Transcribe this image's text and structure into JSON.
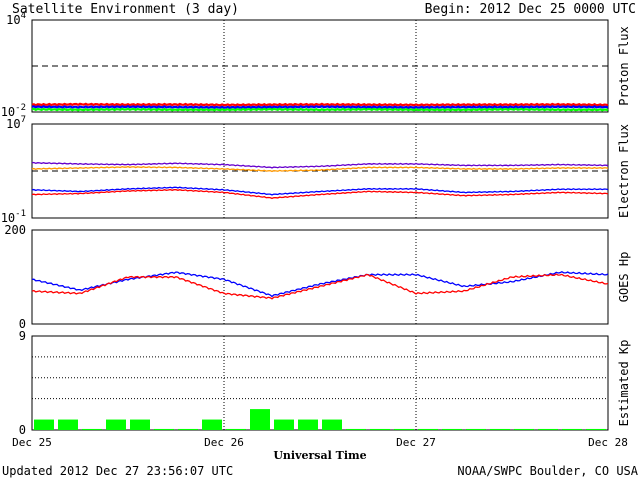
{
  "header": {
    "title": "Satellite Environment (3 day)",
    "begin": "Begin:  2012 Dec 25 0000 UTC"
  },
  "footer": {
    "updated": "Updated 2012 Dec 27 23:56:07 UTC",
    "credit": "NOAA/SWPC Boulder, CO USA"
  },
  "x_axis": {
    "label": "Universal Time",
    "ticks": [
      "Dec 25",
      "Dec 26",
      "Dec 27",
      "Dec 28"
    ],
    "range_days": [
      0,
      3
    ]
  },
  "colors": {
    "red": "#ff0000",
    "blue": "#0000ff",
    "green": "#00ff00",
    "purple": "#6600cc",
    "orange": "#ff9900",
    "black": "#000000"
  },
  "chart_data": [
    {
      "type": "line",
      "ylabel": "Proton Flux",
      "yscale": "log",
      "ylim": [
        0.01,
        10000
      ],
      "ytick_labels": [
        {
          "base": "10",
          "exp": "4"
        },
        {
          "base": "10",
          "exp": "-2"
        }
      ],
      "threshold": 10,
      "x": [
        0,
        0.25,
        0.5,
        0.75,
        1,
        1.25,
        1.5,
        1.75,
        2,
        2.25,
        2.5,
        2.75,
        3
      ],
      "series": [
        {
          "color": "red",
          "values": [
            0.03,
            0.032,
            0.03,
            0.031,
            0.029,
            0.03,
            0.031,
            0.03,
            0.029,
            0.03,
            0.03,
            0.031,
            0.029
          ]
        },
        {
          "color": "blue",
          "values": [
            0.022,
            0.021,
            0.022,
            0.021,
            0.02,
            0.021,
            0.022,
            0.021,
            0.02,
            0.021,
            0.021,
            0.022,
            0.021
          ]
        },
        {
          "color": "green",
          "values": [
            0.015,
            0.014,
            0.015,
            0.014,
            0.014,
            0.015,
            0.014,
            0.015,
            0.014,
            0.014,
            0.015,
            0.014,
            0.014
          ]
        }
      ]
    },
    {
      "type": "line",
      "ylabel": "Electron Flux",
      "yscale": "log",
      "ylim": [
        0.1,
        10000000
      ],
      "ytick_labels": [
        {
          "base": "10",
          "exp": "7"
        },
        {
          "base": "10",
          "exp": "-1"
        }
      ],
      "threshold": 1000,
      "x": [
        0,
        0.25,
        0.5,
        0.75,
        1,
        1.25,
        1.5,
        1.75,
        2,
        2.25,
        2.5,
        2.75,
        3
      ],
      "series": [
        {
          "color": "purple",
          "values": [
            5000,
            4000,
            3500,
            4500,
            3500,
            2000,
            2500,
            4000,
            4000,
            3000,
            3000,
            3500,
            3000
          ]
        },
        {
          "color": "orange",
          "values": [
            1500,
            1800,
            2200,
            2000,
            1500,
            1000,
            1200,
            2000,
            2000,
            1500,
            1500,
            1800,
            1800
          ]
        },
        {
          "color": "blue",
          "values": [
            25,
            18,
            30,
            40,
            25,
            10,
            18,
            30,
            30,
            15,
            18,
            28,
            28
          ]
        },
        {
          "color": "red",
          "values": [
            10,
            12,
            20,
            25,
            15,
            5,
            10,
            18,
            15,
            8,
            10,
            15,
            12
          ]
        }
      ]
    },
    {
      "type": "line",
      "ylabel": "GOES Hp",
      "ylim": [
        0,
        200
      ],
      "ytick_labels": [
        "200",
        "0"
      ],
      "x": [
        0,
        0.25,
        0.5,
        0.75,
        1,
        1.25,
        1.5,
        1.75,
        2,
        2.25,
        2.5,
        2.75,
        3
      ],
      "series": [
        {
          "color": "blue",
          "values": [
            95,
            72,
            95,
            110,
            95,
            60,
            85,
            105,
            105,
            80,
            90,
            110,
            105
          ]
        },
        {
          "color": "red",
          "values": [
            70,
            65,
            100,
            100,
            65,
            55,
            80,
            105,
            65,
            70,
            100,
            105,
            85
          ]
        }
      ]
    },
    {
      "type": "bar",
      "ylabel": "Estimated Kp",
      "ylim": [
        0,
        9
      ],
      "ytick_labels": [
        "9",
        "0"
      ],
      "gridlines": [
        3,
        5,
        7
      ],
      "x": [
        0.0625,
        0.1875,
        0.3125,
        0.4375,
        0.5625,
        0.6875,
        0.8125,
        0.9375,
        1.0625,
        1.1875,
        1.3125,
        1.4375,
        1.5625,
        1.6875,
        1.8125,
        1.9375,
        2.0625,
        2.1875,
        2.3125,
        2.4375,
        2.5625,
        2.6875,
        2.8125,
        2.9375
      ],
      "values": [
        1,
        1,
        0.1,
        1,
        1,
        0.1,
        0.1,
        1,
        0.1,
        2,
        1,
        1,
        1,
        0.1,
        0.1,
        0.1,
        0.1,
        0.1,
        0.1,
        0.1,
        0.1,
        0.1,
        0.1,
        0.1
      ],
      "bar_color": "green"
    }
  ]
}
